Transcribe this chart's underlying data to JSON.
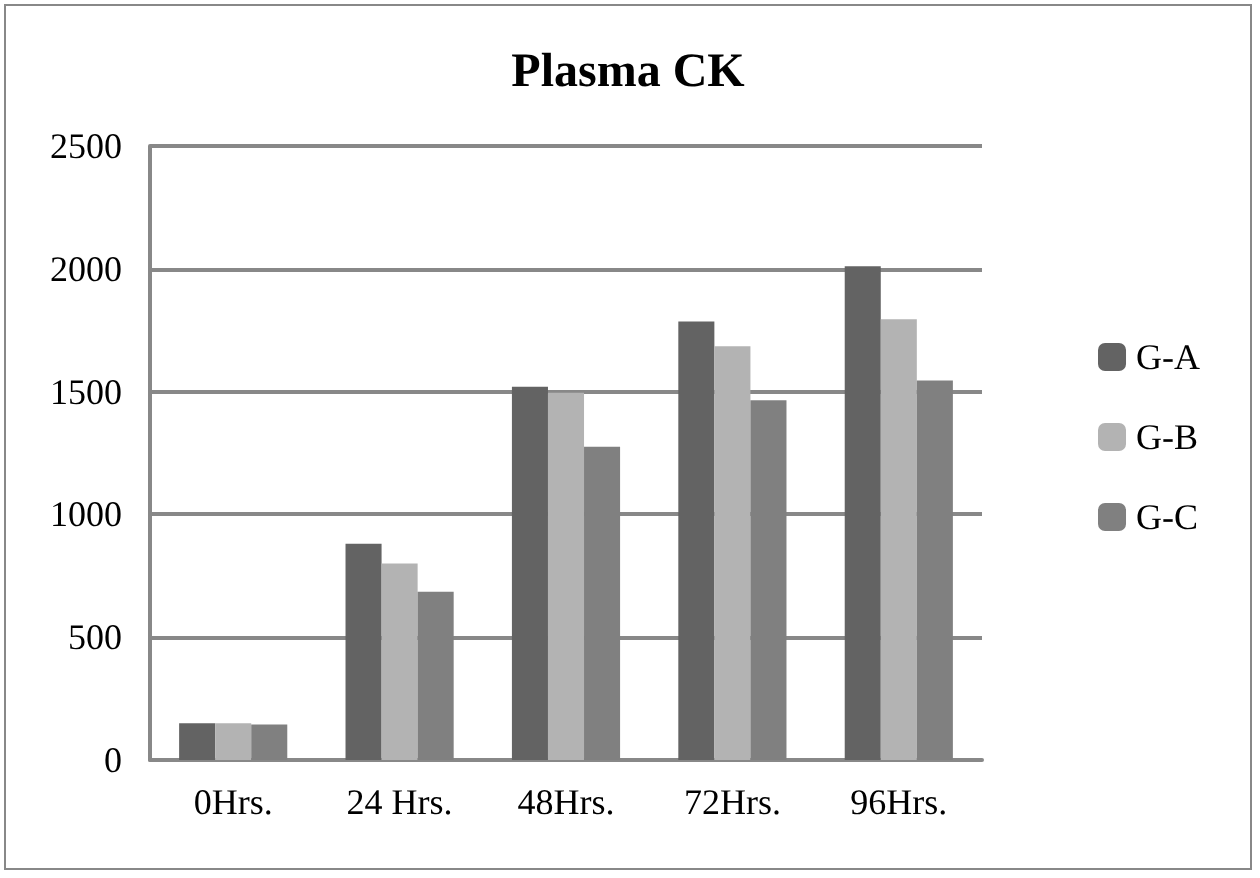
{
  "chart_data": {
    "type": "bar",
    "title": "Plasma CK",
    "categories": [
      "0Hrs.",
      "24 Hrs.",
      "48Hrs.",
      "72Hrs.",
      "96Hrs."
    ],
    "series": [
      {
        "name": "G-A",
        "color": "#636363",
        "values": [
          150,
          880,
          1520,
          1785,
          2010
        ]
      },
      {
        "name": "G-B",
        "color": "#b3b3b3",
        "values": [
          150,
          800,
          1495,
          1685,
          1795
        ]
      },
      {
        "name": "G-C",
        "color": "#808080",
        "values": [
          145,
          685,
          1275,
          1465,
          1545
        ]
      }
    ],
    "ylim": [
      0,
      2500
    ],
    "yticks": [
      0,
      500,
      1000,
      1500,
      2000,
      2500
    ],
    "grid": "y",
    "legend": "right"
  }
}
